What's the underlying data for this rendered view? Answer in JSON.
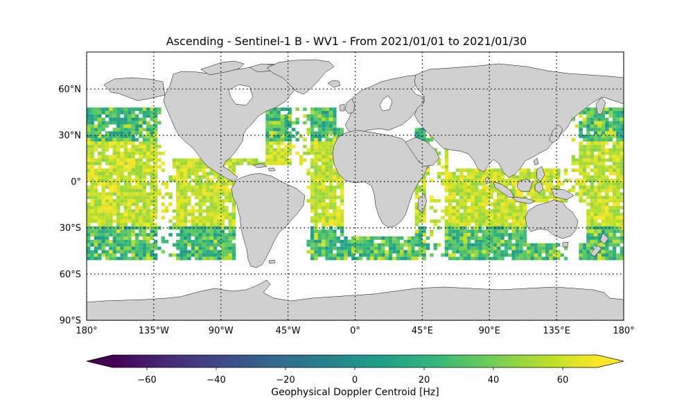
{
  "title": "Ascending - Sentinel-1 B - WV1 - From 2021/01/01 to 2021/01/30",
  "map": {
    "projection": "PlateCarree",
    "extent": {
      "lon": [
        -180,
        180
      ],
      "lat": [
        -90,
        90
      ]
    },
    "land_color": "#d0d0d0",
    "coastline_color": "#000000",
    "gridlines": "dotted",
    "lat_ticks": [
      {
        "value": 60,
        "label": "60°N"
      },
      {
        "value": 30,
        "label": "30°N"
      },
      {
        "value": 0,
        "label": "0°"
      },
      {
        "value": -30,
        "label": "30°S"
      },
      {
        "value": -60,
        "label": "60°S"
      },
      {
        "value": -90,
        "label": "90°S"
      }
    ],
    "lon_ticks": [
      {
        "value": -180,
        "label": "180°"
      },
      {
        "value": -135,
        "label": "135°W"
      },
      {
        "value": -90,
        "label": "90°W"
      },
      {
        "value": -45,
        "label": "45°W"
      },
      {
        "value": 0,
        "label": "0°"
      },
      {
        "value": 45,
        "label": "45°E"
      },
      {
        "value": 90,
        "label": "90°E"
      },
      {
        "value": 135,
        "label": "135°E"
      },
      {
        "value": 180,
        "label": "180°"
      }
    ]
  },
  "colorbar": {
    "label": "Geophysical Doppler Centroid [Hz]",
    "colormap": "viridis",
    "range": [
      -70,
      70
    ],
    "extend": "both",
    "ticks": [
      {
        "value": -60,
        "label": "−60"
      },
      {
        "value": -40,
        "label": "−40"
      },
      {
        "value": -20,
        "label": "−20"
      },
      {
        "value": 0,
        "label": "0"
      },
      {
        "value": 20,
        "label": "20"
      },
      {
        "value": 40,
        "label": "40"
      },
      {
        "value": 60,
        "label": "60"
      }
    ]
  },
  "data_coverage": {
    "lat_range": [
      -50,
      50
    ],
    "lon_range": [
      -180,
      180
    ],
    "dominant_values_hz": [
      5,
      60
    ],
    "note": "ocean wave-mode swaths, values mostly 10–65 Hz"
  }
}
